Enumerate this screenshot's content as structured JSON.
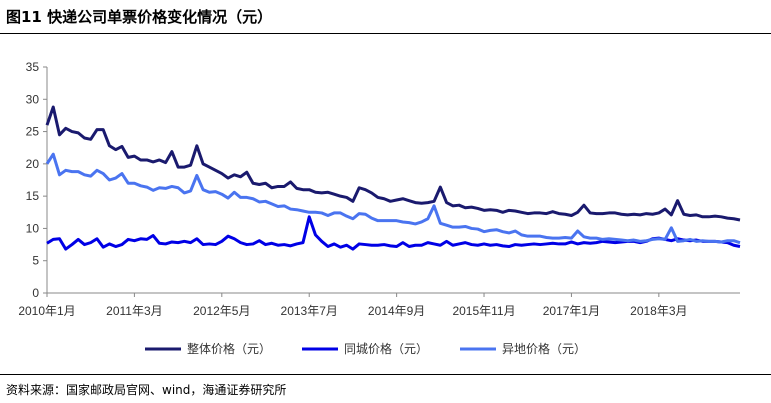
{
  "figure": {
    "title": "图11 快递公司单票价格变化情况（元）",
    "source": "资料来源：国家邮政局官网、wind，海通证券研究所"
  },
  "chart_data": {
    "type": "line",
    "xlabel": "",
    "ylabel": "",
    "ylim": [
      0,
      35
    ],
    "yticks": [
      0,
      5,
      10,
      15,
      20,
      25,
      30,
      35
    ],
    "x_start": "2010-01",
    "x_tick_labels": [
      {
        "index": 0,
        "label": "2010年1月"
      },
      {
        "index": 14,
        "label": "2011年3月"
      },
      {
        "index": 28,
        "label": "2012年5月"
      },
      {
        "index": 42,
        "label": "2013年7月"
      },
      {
        "index": 56,
        "label": "2014年9月"
      },
      {
        "index": 70,
        "label": "2015年11月"
      },
      {
        "index": 84,
        "label": "2017年1月"
      },
      {
        "index": 98,
        "label": "2018年3月"
      }
    ],
    "legend_position": "bottom",
    "series": [
      {
        "name": "整体价格（元）",
        "color": "#1a1a6e",
        "values": [
          26,
          28.8,
          24.5,
          25.5,
          25,
          24.8,
          24,
          23.8,
          25.3,
          25.3,
          22.8,
          22.2,
          22.7,
          21,
          21.2,
          20.6,
          20.6,
          20.3,
          20.6,
          20.2,
          21.9,
          19.5,
          19.5,
          19.8,
          22.8,
          20,
          19.5,
          19,
          18.5,
          17.8,
          18.3,
          18,
          18.7,
          17,
          16.8,
          17,
          16.3,
          16.5,
          16.5,
          17.2,
          16.2,
          16,
          16,
          15.6,
          15.5,
          15.6,
          15.3,
          15,
          14.8,
          14.2,
          16.3,
          16,
          15.5,
          14.8,
          14.6,
          14.2,
          14.4,
          14.6,
          14.3,
          14,
          13.9,
          14,
          14.2,
          16.4,
          14,
          13.5,
          13.6,
          13.2,
          13.3,
          13.1,
          12.8,
          12.9,
          12.8,
          12.5,
          12.8,
          12.7,
          12.5,
          12.3,
          12.4,
          12.4,
          12.3,
          12.6,
          12.3,
          12.2,
          12,
          12.5,
          13.6,
          12.4,
          12.3,
          12.3,
          12.4,
          12.4,
          12.2,
          12.1,
          12.2,
          12.1,
          12.3,
          12.2,
          12.4,
          13,
          12.1,
          14.3,
          12.2,
          12,
          12.1,
          11.8,
          11.8,
          11.9,
          11.8,
          11.6,
          11.5,
          11.3
        ]
      },
      {
        "name": "同城价格（元）",
        "color": "#0000e6",
        "values": [
          7.7,
          8.3,
          8.4,
          6.8,
          7.5,
          8.3,
          7.5,
          7.8,
          8.4,
          7.1,
          7.6,
          7.2,
          7.5,
          8.3,
          8.1,
          8.4,
          8.3,
          8.9,
          7.7,
          7.6,
          7.9,
          7.8,
          8,
          7.8,
          8.4,
          7.5,
          7.6,
          7.5,
          8,
          8.8,
          8.4,
          7.8,
          7.5,
          7.6,
          8.1,
          7.5,
          7.7,
          7.4,
          7.5,
          7.3,
          7.6,
          7.8,
          11.8,
          9,
          8,
          7.2,
          7.6,
          7.1,
          7.4,
          6.8,
          7.6,
          7.5,
          7.4,
          7.4,
          7.5,
          7.3,
          7.2,
          7.8,
          7.2,
          7.4,
          7.4,
          7.8,
          7.6,
          7.4,
          8,
          7.4,
          7.6,
          7.8,
          7.5,
          7.4,
          7.6,
          7.4,
          7.5,
          7.3,
          7.2,
          7.5,
          7.4,
          7.5,
          7.6,
          7.5,
          7.6,
          7.7,
          7.6,
          7.6,
          7.9,
          7.6,
          7.8,
          7.7,
          7.8,
          8,
          7.9,
          7.8,
          7.9,
          8,
          8,
          7.8,
          8,
          8.4,
          8.5,
          8.3,
          8.1,
          8.4,
          8.2,
          8.1,
          8.2,
          8,
          8,
          8,
          7.9,
          7.8,
          7.4,
          7.2
        ]
      },
      {
        "name": "异地价格（元）",
        "color": "#4a74f0",
        "values": [
          20,
          21.5,
          18.3,
          19,
          18.8,
          18.8,
          18.3,
          18.1,
          19,
          18.5,
          17.5,
          17.8,
          18.5,
          17,
          17,
          16.6,
          16.4,
          15.9,
          16.3,
          16.2,
          16.5,
          16.3,
          15.5,
          15.8,
          18.2,
          16,
          15.6,
          15.7,
          15.3,
          14.7,
          15.6,
          14.8,
          14.8,
          14.6,
          14.1,
          14.2,
          13.8,
          13.4,
          13.5,
          13,
          12.9,
          12.7,
          12.5,
          12.5,
          12.4,
          12,
          12.4,
          12.4,
          11.9,
          11.5,
          12.3,
          12.2,
          11.6,
          11.2,
          11.2,
          11.2,
          11.2,
          11,
          10.9,
          10.7,
          11,
          11.5,
          13.5,
          10.8,
          10.5,
          10.2,
          10.2,
          10.3,
          10,
          9.9,
          9.5,
          9.7,
          9.8,
          9.5,
          9.3,
          9.6,
          9,
          8.8,
          8.8,
          8.8,
          8.6,
          8.5,
          8.5,
          8.6,
          8.5,
          9.6,
          8.7,
          8.5,
          8.5,
          8.3,
          8.4,
          8.3,
          8.2,
          8.1,
          8.2,
          8,
          8.1,
          8.3,
          8.4,
          8.3,
          10.1,
          8,
          8.1,
          8.3,
          8,
          8.1,
          8,
          8,
          7.9,
          8.1,
          8.1,
          7.8
        ]
      }
    ]
  }
}
